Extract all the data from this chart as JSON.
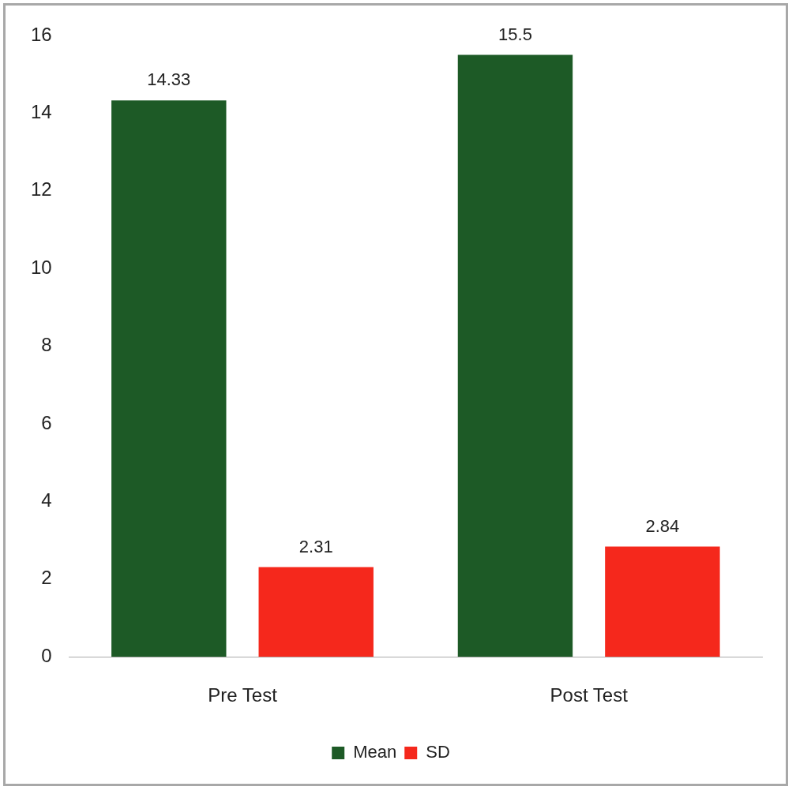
{
  "chart_data": {
    "type": "bar",
    "categories": [
      "Pre Test",
      "Post Test"
    ],
    "series": [
      {
        "name": "Mean",
        "color": "#1d5a26",
        "values": [
          14.33,
          15.5
        ]
      },
      {
        "name": "SD",
        "color": "#f5281c",
        "values": [
          2.31,
          2.84
        ]
      }
    ],
    "ylim": [
      0,
      16
    ],
    "yticks": [
      0,
      2,
      4,
      6,
      8,
      10,
      12,
      14,
      16
    ],
    "grid": false,
    "legend": "bottom",
    "data_labels": true
  }
}
